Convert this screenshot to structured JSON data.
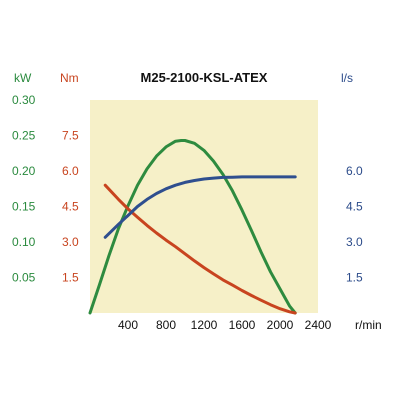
{
  "chart_data": {
    "type": "line",
    "title": "M25-2100-KSL-ATEX",
    "background_color": "#f6f0c8",
    "grid": false,
    "x_axis": {
      "unit": "r/min",
      "ticks": [
        400,
        800,
        1200,
        1600,
        2000,
        2400
      ],
      "range": [
        0,
        2400
      ]
    },
    "axes": {
      "power": {
        "unit": "kW",
        "color": "#2a8a3e",
        "ticks": [
          "0.05",
          "0.10",
          "0.15",
          "0.20",
          "0.25",
          "0.30"
        ],
        "range": [
          0,
          0.3
        ]
      },
      "torque": {
        "unit": "Nm",
        "color": "#c8441f",
        "ticks": [
          "1.5",
          "3.0",
          "4.5",
          "6.0",
          "7.5"
        ],
        "range": [
          0,
          9
        ]
      },
      "flow": {
        "unit": "l/s",
        "color": "#2b4b8a",
        "ticks": [
          "1.5",
          "3.0",
          "4.5",
          "6.0"
        ],
        "range": [
          0,
          9
        ]
      }
    },
    "series": [
      {
        "axis": "power",
        "color": "#2e8b3f",
        "x": [
          0,
          100,
          200,
          300,
          400,
          500,
          600,
          700,
          800,
          900,
          960,
          1000,
          1100,
          1200,
          1300,
          1400,
          1500,
          1600,
          1700,
          1800,
          1900,
          2000,
          2100,
          2160
        ],
        "y": [
          0.0,
          0.04,
          0.081,
          0.119,
          0.151,
          0.18,
          0.203,
          0.221,
          0.234,
          0.242,
          0.243,
          0.243,
          0.239,
          0.229,
          0.214,
          0.195,
          0.172,
          0.145,
          0.116,
          0.086,
          0.058,
          0.034,
          0.01,
          0.0
        ]
      },
      {
        "axis": "torque",
        "color": "#c8441f",
        "x": [
          160,
          300,
          400,
          500,
          600,
          700,
          800,
          900,
          1000,
          1100,
          1200,
          1300,
          1400,
          1500,
          1600,
          1700,
          1800,
          1900,
          2000,
          2100,
          2160
        ],
        "y": [
          5.4,
          4.8,
          4.4,
          4.05,
          3.7,
          3.38,
          3.08,
          2.8,
          2.5,
          2.2,
          1.92,
          1.65,
          1.4,
          1.18,
          0.95,
          0.74,
          0.54,
          0.35,
          0.18,
          0.05,
          0.0
        ]
      },
      {
        "axis": "flow",
        "color": "#2f4f8f",
        "x": [
          160,
          300,
          400,
          500,
          600,
          700,
          800,
          900,
          1000,
          1100,
          1200,
          1300,
          1400,
          1500,
          1600,
          1700,
          1800,
          1900,
          2000,
          2100,
          2160
        ],
        "y": [
          3.2,
          3.75,
          4.12,
          4.5,
          4.8,
          5.05,
          5.25,
          5.4,
          5.52,
          5.6,
          5.66,
          5.7,
          5.73,
          5.74,
          5.75,
          5.75,
          5.75,
          5.75,
          5.75,
          5.75,
          5.75
        ]
      }
    ]
  }
}
